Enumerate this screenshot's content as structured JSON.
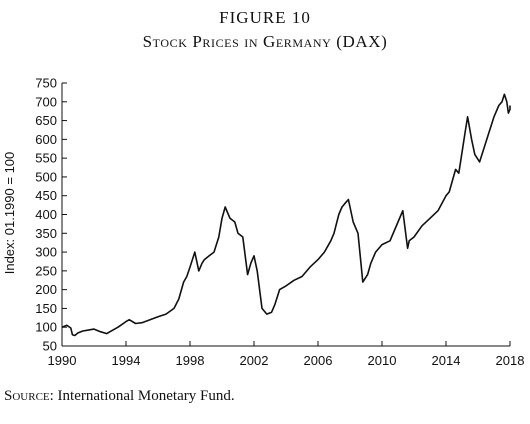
{
  "figure": {
    "number": "FIGURE 10",
    "title": "Stock Prices in Germany (DAX)"
  },
  "source": {
    "lead": "Source:",
    "text": " International Monetary Fund."
  },
  "chart_data": {
    "type": "line",
    "title": "Stock Prices in Germany (DAX)",
    "xlabel": "",
    "ylabel": "Index: 01.1990 = 100",
    "xlim": [
      1990,
      2018
    ],
    "ylim": [
      50,
      750
    ],
    "x_ticks": [
      1990,
      1994,
      1998,
      2002,
      2006,
      2010,
      2014,
      2018
    ],
    "y_ticks": [
      50,
      100,
      150,
      200,
      250,
      300,
      350,
      400,
      450,
      500,
      550,
      600,
      650,
      700,
      750
    ],
    "grid": false,
    "series": [
      {
        "x": [
          1990.0,
          1990.3,
          1990.55,
          1990.65,
          1990.8,
          1991.0,
          1991.3,
          1991.6,
          1992.0,
          1992.4,
          1992.8,
          1993.0,
          1993.5,
          1994.0,
          1994.2,
          1994.6,
          1995.0,
          1995.5,
          1996.0,
          1996.5,
          1997.0,
          1997.3,
          1997.6,
          1997.8,
          1998.0,
          1998.3,
          1998.55,
          1998.75,
          1998.9,
          1999.2,
          1999.5,
          1999.8,
          2000.0,
          2000.2,
          2000.5,
          2000.8,
          2001.0,
          2001.3,
          2001.6,
          2001.8,
          2002.0,
          2002.2,
          2002.5,
          2002.8,
          2003.1,
          2003.3,
          2003.6,
          2004.0,
          2004.5,
          2005.0,
          2005.5,
          2006.0,
          2006.4,
          2006.8,
          2007.0,
          2007.3,
          2007.5,
          2007.7,
          2007.9,
          2008.2,
          2008.5,
          2008.8,
          2009.1,
          2009.3,
          2009.6,
          2010.0,
          2010.5,
          2011.0,
          2011.3,
          2011.6,
          2011.7,
          2012.0,
          2012.5,
          2013.0,
          2013.5,
          2014.0,
          2014.2,
          2014.6,
          2014.8,
          2015.2,
          2015.35,
          2015.6,
          2015.8,
          2016.1,
          2016.4,
          2016.7,
          2017.0,
          2017.3,
          2017.5,
          2017.65,
          2017.8,
          2017.9,
          2018.0,
          2018.1
        ],
        "values": [
          100,
          105,
          98,
          80,
          78,
          85,
          90,
          92,
          95,
          88,
          83,
          88,
          100,
          115,
          120,
          110,
          112,
          120,
          128,
          135,
          150,
          175,
          220,
          235,
          260,
          300,
          250,
          270,
          280,
          290,
          300,
          340,
          390,
          420,
          390,
          380,
          350,
          340,
          240,
          270,
          290,
          250,
          150,
          135,
          140,
          160,
          200,
          210,
          225,
          235,
          260,
          280,
          300,
          330,
          350,
          400,
          420,
          430,
          440,
          380,
          350,
          220,
          240,
          270,
          300,
          320,
          330,
          380,
          410,
          310,
          330,
          340,
          370,
          390,
          410,
          450,
          460,
          520,
          510,
          620,
          660,
          600,
          560,
          540,
          580,
          620,
          660,
          690,
          700,
          720,
          700,
          670,
          680,
          690
        ]
      }
    ]
  }
}
